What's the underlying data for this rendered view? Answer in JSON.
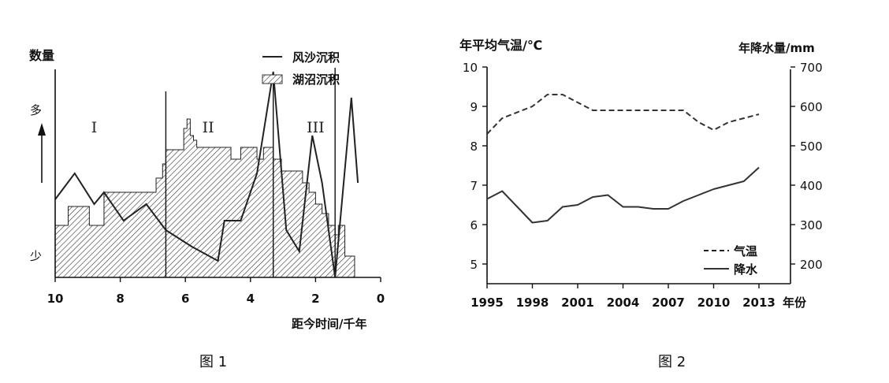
{
  "chart_data": [
    {
      "type": "area",
      "caption": "图 1",
      "ylabel": "数量",
      "y_high": "多",
      "y_low": "少",
      "xlabel": "距今时间/千年",
      "x_ticks": [
        "10",
        "8",
        "6",
        "4",
        "2",
        "0"
      ],
      "xlim": [
        10,
        0
      ],
      "periods": [
        {
          "label": "I",
          "x": 8.8
        },
        {
          "label": "II",
          "x": 5.3
        },
        {
          "label": "III",
          "x": 2.0
        }
      ],
      "boundaries": [
        6.6,
        3.3,
        1.4
      ],
      "legend": {
        "line": "风沙沉积",
        "area": "湖沼沉积"
      },
      "series": [
        {
          "name": "风沙沉积",
          "kind": "line",
          "points": [
            [
              10,
              0.33
            ],
            [
              9.4,
              0.44
            ],
            [
              8.8,
              0.31
            ],
            [
              8.5,
              0.36
            ],
            [
              7.9,
              0.24
            ],
            [
              7.2,
              0.31
            ],
            [
              6.6,
              0.2
            ],
            [
              5.8,
              0.13
            ],
            [
              5.0,
              0.07
            ],
            [
              4.8,
              0.24
            ],
            [
              4.3,
              0.24
            ],
            [
              3.8,
              0.44
            ],
            [
              3.3,
              0.87
            ],
            [
              2.9,
              0.2
            ],
            [
              2.5,
              0.11
            ],
            [
              2.1,
              0.6
            ],
            [
              1.8,
              0.4
            ],
            [
              1.4,
              0.0
            ],
            [
              0.9,
              0.76
            ],
            [
              0.7,
              0.4
            ]
          ]
        },
        {
          "name": "湖沼沉积",
          "kind": "step-area",
          "points": [
            [
              9.95,
              0.22
            ],
            [
              9.6,
              0.3
            ],
            [
              8.95,
              0.22
            ],
            [
              8.5,
              0.36
            ],
            [
              7.6,
              0.36
            ],
            [
              7.1,
              0.36
            ],
            [
              6.9,
              0.42
            ],
            [
              6.7,
              0.48
            ],
            [
              6.6,
              0.54
            ],
            [
              6.1,
              0.54
            ],
            [
              6.05,
              0.63
            ],
            [
              5.95,
              0.67
            ],
            [
              5.85,
              0.6
            ],
            [
              5.75,
              0.58
            ],
            [
              5.65,
              0.55
            ],
            [
              4.8,
              0.55
            ],
            [
              4.6,
              0.5
            ],
            [
              4.3,
              0.55
            ],
            [
              3.8,
              0.5
            ],
            [
              3.6,
              0.55
            ],
            [
              3.3,
              0.5
            ],
            [
              3.05,
              0.45
            ],
            [
              2.4,
              0.4
            ],
            [
              2.2,
              0.36
            ],
            [
              2.0,
              0.31
            ],
            [
              1.8,
              0.27
            ],
            [
              1.6,
              0.22
            ],
            [
              1.4,
              0.18
            ],
            [
              1.3,
              0.22
            ],
            [
              1.1,
              0.09
            ],
            [
              0.8,
              0.0
            ]
          ]
        }
      ]
    },
    {
      "type": "line",
      "caption": "图 2",
      "ylabel_left": "年平均气温/℃",
      "ylabel_right": "年降水量/mm",
      "xlabel": "年份",
      "x_ticks": [
        "1995",
        "1998",
        "2001",
        "2004",
        "2007",
        "2010",
        "2013"
      ],
      "ylim_left": [
        4.5,
        10
      ],
      "ylim_right": [
        150,
        700
      ],
      "yticks_left": [
        "5",
        "6",
        "7",
        "8",
        "9",
        "10"
      ],
      "yticks_right": [
        "200",
        "300",
        "400",
        "500",
        "600",
        "700"
      ],
      "legend": {
        "temp": "气温",
        "precip": "降水"
      },
      "series": [
        {
          "name": "气温",
          "axis": "left",
          "style": "dashed",
          "x": [
            1995,
            1996,
            1998,
            1999,
            2000,
            2001,
            2002,
            2003,
            2004,
            2005,
            2006,
            2007,
            2008,
            2009,
            2010,
            2011,
            2012,
            2013
          ],
          "values": [
            8.3,
            8.7,
            9.0,
            9.3,
            9.3,
            9.1,
            8.9,
            8.9,
            8.9,
            8.9,
            8.9,
            8.9,
            8.9,
            8.6,
            8.4,
            8.6,
            8.7,
            8.8
          ]
        },
        {
          "name": "降水",
          "axis": "right",
          "style": "solid",
          "x": [
            1995,
            1996,
            1997,
            1998,
            1999,
            2000,
            2001,
            2002,
            2003,
            2004,
            2005,
            2006,
            2007,
            2008,
            2009,
            2010,
            2011,
            2012,
            2013
          ],
          "values": [
            365,
            385,
            345,
            305,
            310,
            345,
            350,
            370,
            375,
            345,
            345,
            340,
            340,
            360,
            375,
            390,
            400,
            410,
            445
          ]
        }
      ]
    }
  ]
}
